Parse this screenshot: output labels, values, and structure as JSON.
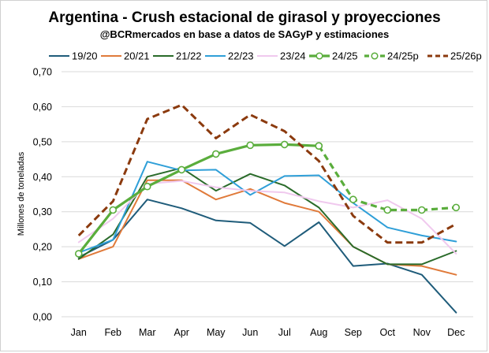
{
  "chart_data": {
    "type": "line",
    "title": "Argentina - Crush estacional de girasol y proyecciones",
    "subtitle": "@BCRmercados en base a datos de SAGyP y estimaciones",
    "xlabel": "",
    "ylabel": "Millones de toneladas",
    "ylim": [
      0,
      0.7
    ],
    "yticks": [
      "0,00",
      "0,10",
      "0,20",
      "0,30",
      "0,40",
      "0,50",
      "0,60",
      "0,70"
    ],
    "categories": [
      "Jan",
      "Feb",
      "Mar",
      "Apr",
      "May",
      "Jun",
      "Jul",
      "Aug",
      "Sep",
      "Oct",
      "Nov",
      "Dec"
    ],
    "grid": true,
    "legend_position": "top",
    "series": [
      {
        "name": "19/20",
        "color": "#1f5c7a",
        "style": "solid",
        "markers": false,
        "values": [
          0.17,
          0.22,
          0.335,
          0.31,
          0.275,
          0.268,
          0.202,
          0.27,
          0.145,
          0.152,
          0.12,
          0.012
        ]
      },
      {
        "name": "20/21",
        "color": "#e07a3a",
        "style": "solid",
        "markers": false,
        "values": [
          0.165,
          0.2,
          0.39,
          0.39,
          0.335,
          0.365,
          0.325,
          0.3,
          0.2,
          0.15,
          0.145,
          0.12
        ]
      },
      {
        "name": "21/22",
        "color": "#2a6b2a",
        "style": "solid",
        "markers": false,
        "values": [
          0.165,
          0.235,
          0.4,
          0.425,
          0.36,
          0.408,
          0.375,
          0.312,
          0.2,
          0.15,
          0.15,
          0.188
        ]
      },
      {
        "name": "22/23",
        "color": "#2f9fd8",
        "style": "solid",
        "markers": false,
        "values": [
          0.183,
          0.22,
          0.443,
          0.418,
          0.42,
          0.348,
          0.402,
          0.404,
          0.325,
          0.255,
          0.232,
          0.215
        ]
      },
      {
        "name": "23/24",
        "color": "#f0c9ee",
        "style": "solid",
        "markers": false,
        "values": [
          0.213,
          0.28,
          0.38,
          0.388,
          0.37,
          0.36,
          0.355,
          0.33,
          0.312,
          0.333,
          0.28,
          0.18
        ]
      },
      {
        "name": "24/25",
        "color": "#5aad3c",
        "style": "solid",
        "markers": true,
        "values": [
          0.18,
          0.305,
          0.372,
          0.42,
          0.465,
          0.49,
          0.492,
          0.488,
          null,
          null,
          null,
          null
        ]
      },
      {
        "name": "24/25p",
        "color": "#5aad3c",
        "style": "dashed",
        "markers": true,
        "values": [
          null,
          null,
          null,
          null,
          null,
          null,
          null,
          0.488,
          0.335,
          0.305,
          0.305,
          0.312
        ]
      },
      {
        "name": "25/26p",
        "color": "#8b3a0e",
        "style": "dashed",
        "markers": false,
        "values": [
          0.232,
          0.33,
          0.565,
          0.605,
          0.51,
          0.577,
          0.53,
          0.445,
          0.288,
          0.212,
          0.212,
          0.265
        ]
      }
    ]
  }
}
